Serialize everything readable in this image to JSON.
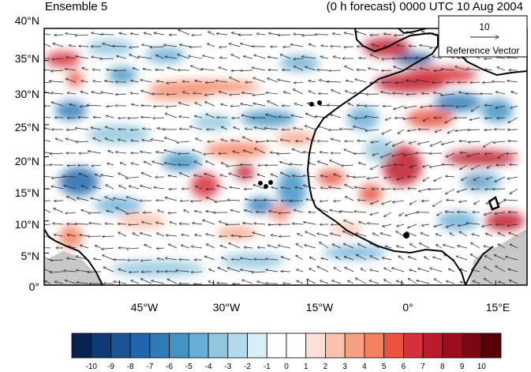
{
  "header": {
    "left_title": "Ensemble 5",
    "right_title": "(0 h forecast) 0000 UTC 10 Aug 2004"
  },
  "map": {
    "lat_labels": [
      "40°N",
      "35°N",
      "30°N",
      "25°N",
      "20°N",
      "15°N",
      "10°N",
      "5°N",
      "0°"
    ],
    "lon_labels": [
      "45°W",
      "30°W",
      "15°W",
      "0°",
      "15°E"
    ],
    "extent": {
      "lon_min": -57,
      "lon_max": 20,
      "lat_min": 0,
      "lat_max": 40
    },
    "land_mask_color": "#c8c8c8"
  },
  "reference_vector": {
    "magnitude": "10",
    "label": "Reference Vector"
  },
  "colorbar": {
    "labels": [
      "-10",
      "-9",
      "-8",
      "-7",
      "-6",
      "-5",
      "-4",
      "-3",
      "-2",
      "-1",
      "0",
      "1",
      "2",
      "3",
      "4",
      "5",
      "6",
      "7",
      "8",
      "9",
      "10"
    ],
    "colors": [
      "#08234f",
      "#0d3b75",
      "#1a5494",
      "#2166ac",
      "#2f7bb8",
      "#4393c3",
      "#6aaed6",
      "#92c5de",
      "#b4daeb",
      "#d9eef7",
      "#ffffff",
      "#ffffff",
      "#fde0d8",
      "#fbc1ad",
      "#f6a083",
      "#f4805f",
      "#e8543f",
      "#d6303a",
      "#bd1a2a",
      "#9b0e1f",
      "#7a0813",
      "#5a000a"
    ]
  }
}
